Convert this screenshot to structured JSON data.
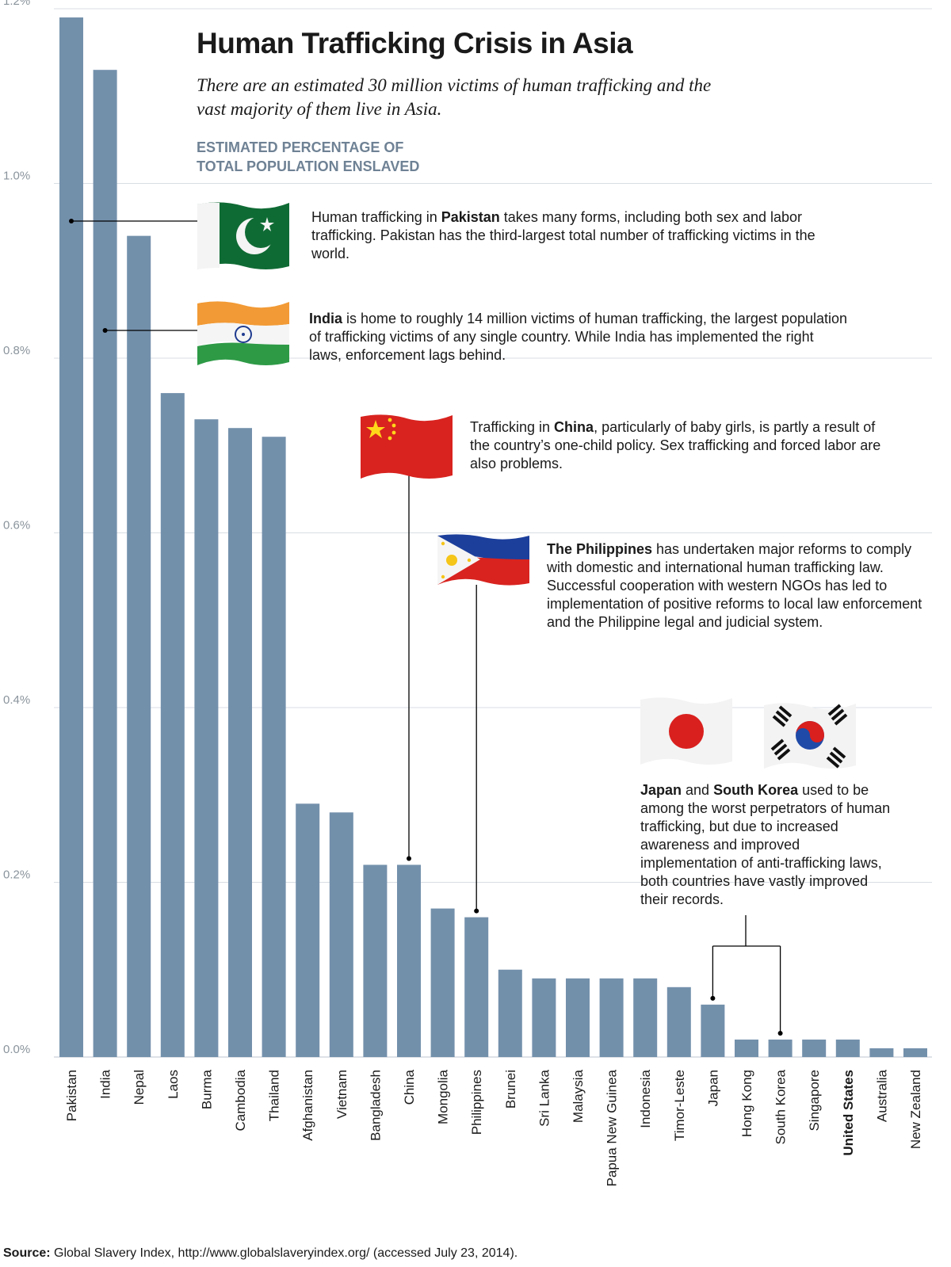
{
  "chart_data": {
    "type": "bar",
    "title": "Human Trafficking Crisis in Asia",
    "subtitle": "There are an estimated 30 million victims of human trafficking and the vast majority of them live in Asia.",
    "ylabel_lines": [
      "ESTIMATED PERCENTAGE OF",
      "TOTAL POPULATION ENSLAVED"
    ],
    "xlabel": "",
    "ylim": [
      0,
      1.2
    ],
    "yticks": [
      0,
      0.2,
      0.4,
      0.6,
      0.8,
      1.0,
      1.2
    ],
    "ytick_labels": [
      "0.0%",
      "0.2%",
      "0.4%",
      "0.6%",
      "0.8%",
      "1.0%",
      "1.2%"
    ],
    "grid": true,
    "categories": [
      "Pakistan",
      "India",
      "Nepal",
      "Laos",
      "Burma",
      "Cambodia",
      "Thailand",
      "Afghanistan",
      "Vietnam",
      "Bangladesh",
      "China",
      "Mongolia",
      "Philippines",
      "Brunei",
      "Sri Lanka",
      "Malaysia",
      "Papua New Guinea",
      "Indonesia",
      "Timor-Leste",
      "Japan",
      "Hong Kong",
      "South Korea",
      "Singapore",
      "United States",
      "Australia",
      "New Zealand"
    ],
    "bold_categories": [
      "United States"
    ],
    "values": [
      1.19,
      1.13,
      0.94,
      0.76,
      0.73,
      0.72,
      0.71,
      0.29,
      0.28,
      0.22,
      0.22,
      0.17,
      0.16,
      0.1,
      0.09,
      0.09,
      0.09,
      0.09,
      0.08,
      0.06,
      0.02,
      0.02,
      0.02,
      0.02,
      0.01,
      0.01
    ],
    "colors": {
      "bar": "#7390ab",
      "grid": "#d8dee4",
      "baseline": "#bcc5cc",
      "leader": "#000000"
    }
  },
  "annotations": {
    "pakistan": {
      "bold": "Pakistan",
      "before": "Human trafficking in ",
      "after": " takes many forms, including both sex and labor trafficking. Pakistan has the third-largest total number of trafficking victims in the world."
    },
    "india": {
      "bold": "India",
      "before": "",
      "after": " is home to roughly 14 million victims of human trafficking, the largest population of trafficking victims of any single country. While India has implemented the right laws, enforcement lags behind."
    },
    "china": {
      "bold": "China",
      "before": "Trafficking in ",
      "after": ", particularly of baby girls, is partly a result of the country’s one-child policy. Sex trafficking and forced labor are also problems."
    },
    "philippines": {
      "bold": "The Philippines",
      "before": "",
      "after": " has undertaken major reforms to comply with domestic and international human trafficking law. Successful cooperation with western NGOs has led to implementation of positive reforms to local law enforcement and the Philippine legal and judicial system."
    },
    "japan_korea": {
      "bold1": "Japan",
      "mid": " and ",
      "bold2": "South Korea",
      "after": " used to be among the worst perpetrators of human trafficking, but due to increased awareness and improved implementation of anti-trafficking laws, both countries have vastly improved their records."
    }
  },
  "flags": [
    "pakistan-flag",
    "india-flag",
    "china-flag",
    "philippines-flag",
    "japan-flag",
    "south-korea-flag"
  ],
  "source": {
    "label": "Source:",
    "text": " Global Slavery Index, http://www.globalslaveryindex.org/ (accessed July 23, 2014)."
  }
}
